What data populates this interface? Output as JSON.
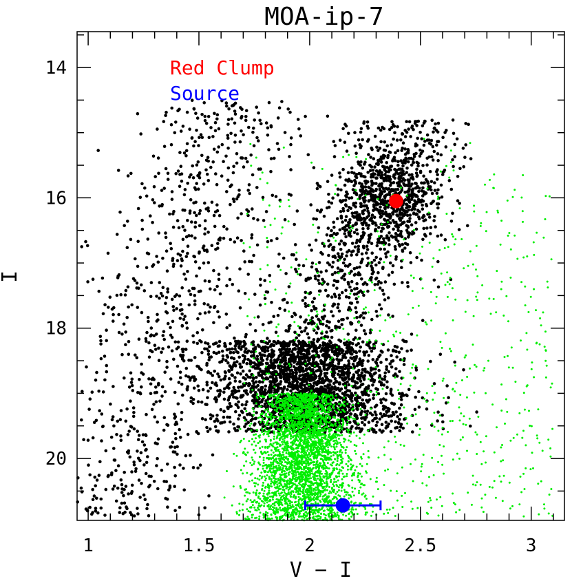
{
  "chart_data": {
    "type": "scatter",
    "title": "MOA-ip-7",
    "xlabel": "V − I",
    "ylabel": "I",
    "xlim": [
      0.95,
      3.15
    ],
    "ylim": [
      20.95,
      13.45
    ],
    "y_inverted": true,
    "grid": false,
    "legend_placement": "top-left",
    "xticks": [
      1,
      1.5,
      2,
      2.5,
      3
    ],
    "xtick_labels": [
      "1",
      "1.5",
      "2",
      "2.5",
      "3"
    ],
    "yticks": [
      14,
      16,
      18,
      20
    ],
    "ytick_labels": [
      "14",
      "16",
      "18",
      "20"
    ],
    "legend": [
      {
        "label": "Red Clump",
        "color": "#ff0000"
      },
      {
        "label": "Source",
        "color": "#0000ff"
      }
    ],
    "background_stars": {
      "field_color": "#000000",
      "hst_color": "#00ee00",
      "components": [
        {
          "color": "#000000",
          "label": "",
          "kind": "main_sequence_turnoff",
          "vi_center": 1.98,
          "vi_sigma": 0.22,
          "i_range": [
            18.2,
            19.6
          ],
          "count": 2000
        },
        {
          "color": "#000000",
          "label": "",
          "kind": "red_giant_branch",
          "vi_range": [
            1.85,
            2.75
          ],
          "i_range": [
            14.8,
            19.2
          ],
          "count": 1100
        },
        {
          "color": "#000000",
          "label": "",
          "kind": "red_clump",
          "vi_center": 2.35,
          "vi_sigma": 0.12,
          "i_center": 16.0,
          "i_sigma": 0.35,
          "count": 500
        },
        {
          "color": "#000000",
          "label": "",
          "kind": "disk_main_sequence",
          "vi_range": [
            0.97,
            1.9
          ],
          "i_range": [
            14.5,
            20.9
          ],
          "count": 900
        },
        {
          "color": "#00ee00",
          "label": "",
          "kind": "hst_main_sequence",
          "vi_center": 1.97,
          "vi_sigma": 0.08,
          "i_range": [
            19.0,
            20.95
          ],
          "count": 3200
        },
        {
          "color": "#00ee00",
          "label": "",
          "kind": "hst_scatter",
          "vi_range": [
            1.7,
            3.1
          ],
          "i_range": [
            15.0,
            20.9
          ],
          "count": 700
        }
      ]
    },
    "series": [
      {
        "name": "Red Clump",
        "color": "#ff0000",
        "points": [
          {
            "x": 2.39,
            "y": 16.05
          }
        ]
      },
      {
        "name": "Source",
        "color": "#0000ff",
        "points": [
          {
            "x": 2.15,
            "y": 20.72,
            "xerr": 0.17
          }
        ]
      }
    ]
  }
}
